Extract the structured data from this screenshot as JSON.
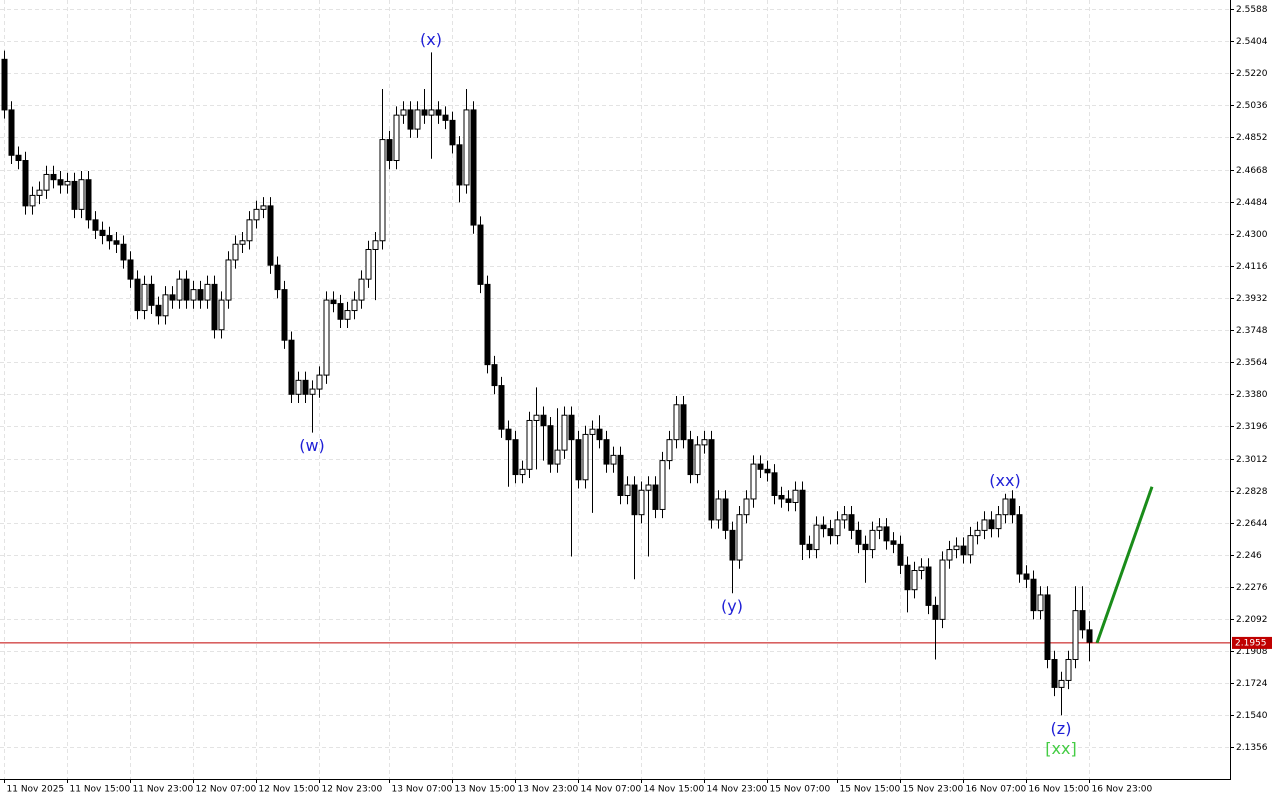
{
  "chart_data": {
    "type": "candlestick",
    "categories": [
      "11 Nov 2025",
      null,
      null,
      null,
      null,
      null,
      null,
      null,
      null,
      "11 Nov 15:00",
      null,
      null,
      null,
      null,
      null,
      null,
      null,
      null,
      "11 Nov 23:00",
      null,
      null,
      null,
      null,
      null,
      null,
      null,
      null,
      "12 Nov 07:00",
      null,
      null,
      null,
      null,
      null,
      null,
      null,
      null,
      "12 Nov 15:00",
      null,
      null,
      null,
      null,
      null,
      null,
      null,
      null,
      "12 Nov 23:00",
      null,
      null,
      null,
      null,
      null,
      null,
      null,
      null,
      null,
      "13 Nov 07:00",
      null,
      null,
      null,
      null,
      null,
      null,
      null,
      null,
      "13 Nov 15:00",
      null,
      null,
      null,
      null,
      null,
      null,
      null,
      null,
      "13 Nov 23:00",
      null,
      null,
      null,
      null,
      null,
      null,
      null,
      null,
      "14 Nov 07:00",
      null,
      null,
      null,
      null,
      null,
      null,
      null,
      null,
      "14 Nov 15:00",
      null,
      null,
      null,
      null,
      null,
      null,
      null,
      null,
      "14 Nov 23:00",
      null,
      null,
      null,
      null,
      null,
      null,
      null,
      null,
      "15 Nov 07:00",
      null,
      null,
      null,
      null,
      null,
      null,
      null,
      null,
      null,
      "15 Nov 15:00",
      null,
      null,
      null,
      null,
      null,
      null,
      null,
      null,
      "15 Nov 23:00",
      null,
      null,
      null,
      null,
      null,
      null,
      null,
      null,
      "16 Nov 07:00",
      null,
      null,
      null,
      null,
      null,
      null,
      null,
      null,
      "16 Nov 15:00",
      null,
      null,
      null,
      null,
      null,
      null,
      null,
      null,
      "16 Nov 23:00"
    ],
    "open": [
      2.53,
      2.501,
      2.475,
      2.472,
      2.446,
      2.452,
      2.455,
      2.464,
      2.461,
      2.458,
      2.46,
      2.444,
      2.461,
      2.438,
      2.432,
      2.429,
      2.426,
      2.424,
      2.415,
      2.404,
      2.386,
      2.401,
      2.389,
      2.383,
      2.395,
      2.392,
      2.404,
      2.392,
      2.398,
      2.392,
      2.401,
      2.375,
      2.392,
      2.415,
      2.424,
      2.426,
      2.438,
      2.444,
      2.446,
      2.412,
      2.398,
      2.369,
      2.338,
      2.346,
      2.338,
      2.341,
      2.349,
      2.392,
      2.39,
      2.381,
      2.386,
      2.392,
      2.404,
      2.421,
      2.426,
      2.484,
      2.472,
      2.498,
      2.501,
      2.49,
      2.501,
      2.498,
      2.501,
      2.498,
      2.495,
      2.481,
      2.458,
      2.501,
      2.435,
      2.401,
      2.355,
      2.343,
      2.318,
      2.312,
      2.292,
      2.295,
      2.323,
      2.326,
      2.32,
      2.298,
      2.306,
      2.326,
      2.312,
      2.289,
      2.315,
      2.318,
      2.312,
      2.298,
      2.303,
      2.28,
      2.286,
      2.269,
      2.283,
      2.286,
      2.272,
      2.3,
      2.312,
      2.332,
      2.312,
      2.292,
      2.309,
      2.312,
      2.266,
      2.278,
      2.26,
      2.243,
      2.269,
      2.278,
      2.298,
      2.295,
      2.293,
      2.28,
      2.278,
      2.276,
      2.283,
      2.252,
      2.249,
      2.263,
      2.261,
      2.257,
      2.266,
      2.269,
      2.26,
      2.252,
      2.249,
      2.26,
      2.262,
      2.254,
      2.252,
      2.24,
      2.226,
      2.237,
      2.239,
      2.217,
      2.209,
      2.243,
      2.249,
      2.251,
      2.246,
      2.257,
      2.26,
      2.266,
      2.261,
      2.269,
      2.278,
      2.269,
      2.235,
      2.232,
      2.214,
      2.223,
      2.186,
      2.17,
      2.174,
      2.186,
      2.214,
      2.203
    ],
    "high": [
      2.535,
      2.506,
      2.48,
      2.477,
      2.457,
      2.46,
      2.469,
      2.469,
      2.466,
      2.465,
      2.465,
      2.466,
      2.466,
      2.443,
      2.437,
      2.434,
      2.431,
      2.429,
      2.42,
      2.409,
      2.406,
      2.406,
      2.394,
      2.4,
      2.4,
      2.409,
      2.409,
      2.403,
      2.403,
      2.406,
      2.406,
      2.397,
      2.42,
      2.429,
      2.431,
      2.443,
      2.449,
      2.451,
      2.451,
      2.417,
      2.403,
      2.374,
      2.351,
      2.351,
      2.346,
      2.354,
      2.397,
      2.397,
      2.395,
      2.391,
      2.397,
      2.409,
      2.426,
      2.431,
      2.513,
      2.489,
      2.503,
      2.506,
      2.506,
      2.506,
      2.513,
      2.534,
      2.506,
      2.503,
      2.5,
      2.486,
      2.513,
      2.506,
      2.44,
      2.406,
      2.36,
      2.348,
      2.323,
      2.317,
      2.3,
      2.328,
      2.342,
      2.331,
      2.325,
      2.33,
      2.331,
      2.331,
      2.317,
      2.32,
      2.323,
      2.326,
      2.317,
      2.308,
      2.308,
      2.291,
      2.291,
      2.288,
      2.291,
      2.291,
      2.305,
      2.317,
      2.337,
      2.337,
      2.317,
      2.314,
      2.317,
      2.317,
      2.283,
      2.283,
      2.265,
      2.274,
      2.283,
      2.303,
      2.303,
      2.3,
      2.298,
      2.285,
      2.283,
      2.288,
      2.288,
      2.257,
      2.268,
      2.268,
      2.266,
      2.271,
      2.274,
      2.274,
      2.265,
      2.257,
      2.265,
      2.267,
      2.267,
      2.259,
      2.257,
      2.245,
      2.242,
      2.244,
      2.244,
      2.222,
      2.248,
      2.254,
      2.256,
      2.256,
      2.262,
      2.265,
      2.271,
      2.271,
      2.274,
      2.281,
      2.283,
      2.274,
      2.24,
      2.237,
      2.228,
      2.228,
      2.191,
      2.179,
      2.191,
      2.228,
      2.228,
      2.208
    ],
    "low": [
      2.496,
      2.47,
      2.467,
      2.441,
      2.441,
      2.447,
      2.45,
      2.456,
      2.453,
      2.453,
      2.439,
      2.439,
      2.433,
      2.427,
      2.424,
      2.421,
      2.419,
      2.41,
      2.399,
      2.381,
      2.381,
      2.384,
      2.378,
      2.378,
      2.387,
      2.387,
      2.387,
      2.387,
      2.387,
      2.387,
      2.37,
      2.37,
      2.387,
      2.41,
      2.419,
      2.421,
      2.433,
      2.439,
      2.407,
      2.393,
      2.364,
      2.333,
      2.333,
      2.333,
      2.316,
      2.336,
      2.344,
      2.385,
      2.376,
      2.376,
      2.381,
      2.387,
      2.399,
      2.392,
      2.421,
      2.467,
      2.467,
      2.493,
      2.485,
      2.485,
      2.493,
      2.473,
      2.493,
      2.49,
      2.476,
      2.448,
      2.453,
      2.43,
      2.396,
      2.35,
      2.338,
      2.313,
      2.285,
      2.287,
      2.287,
      2.29,
      2.295,
      2.3,
      2.293,
      2.293,
      2.301,
      2.245,
      2.284,
      2.284,
      2.27,
      2.307,
      2.293,
      2.293,
      2.275,
      2.275,
      2.232,
      2.264,
      2.245,
      2.267,
      2.267,
      2.295,
      2.307,
      2.307,
      2.287,
      2.287,
      2.304,
      2.261,
      2.261,
      2.255,
      2.224,
      2.238,
      2.264,
      2.273,
      2.29,
      2.288,
      2.275,
      2.273,
      2.271,
      2.271,
      2.243,
      2.244,
      2.244,
      2.256,
      2.252,
      2.252,
      2.261,
      2.255,
      2.247,
      2.23,
      2.244,
      2.255,
      2.249,
      2.247,
      2.235,
      2.213,
      2.221,
      2.232,
      2.212,
      2.186,
      2.204,
      2.238,
      2.244,
      2.241,
      2.241,
      2.252,
      2.255,
      2.256,
      2.256,
      2.264,
      2.264,
      2.23,
      2.227,
      2.209,
      2.209,
      2.181,
      2.165,
      2.154,
      2.169,
      2.181,
      2.198,
      2.185
    ],
    "close": [
      2.501,
      2.475,
      2.472,
      2.446,
      2.452,
      2.455,
      2.464,
      2.461,
      2.458,
      2.46,
      2.444,
      2.461,
      2.438,
      2.432,
      2.429,
      2.426,
      2.424,
      2.415,
      2.404,
      2.386,
      2.401,
      2.389,
      2.383,
      2.395,
      2.392,
      2.404,
      2.392,
      2.398,
      2.392,
      2.401,
      2.375,
      2.392,
      2.415,
      2.424,
      2.426,
      2.438,
      2.444,
      2.446,
      2.412,
      2.398,
      2.369,
      2.338,
      2.346,
      2.338,
      2.341,
      2.349,
      2.392,
      2.39,
      2.381,
      2.386,
      2.392,
      2.404,
      2.421,
      2.426,
      2.484,
      2.472,
      2.498,
      2.501,
      2.49,
      2.501,
      2.498,
      2.501,
      2.498,
      2.495,
      2.481,
      2.458,
      2.501,
      2.435,
      2.401,
      2.355,
      2.343,
      2.318,
      2.312,
      2.292,
      2.295,
      2.323,
      2.326,
      2.32,
      2.298,
      2.306,
      2.326,
      2.312,
      2.289,
      2.315,
      2.318,
      2.312,
      2.298,
      2.303,
      2.28,
      2.286,
      2.269,
      2.283,
      2.286,
      2.272,
      2.3,
      2.312,
      2.332,
      2.312,
      2.292,
      2.309,
      2.312,
      2.266,
      2.278,
      2.26,
      2.243,
      2.269,
      2.278,
      2.298,
      2.295,
      2.293,
      2.28,
      2.278,
      2.276,
      2.283,
      2.252,
      2.249,
      2.263,
      2.261,
      2.257,
      2.266,
      2.269,
      2.26,
      2.252,
      2.249,
      2.26,
      2.262,
      2.254,
      2.252,
      2.24,
      2.226,
      2.237,
      2.239,
      2.217,
      2.209,
      2.243,
      2.249,
      2.251,
      2.246,
      2.257,
      2.26,
      2.266,
      2.261,
      2.269,
      2.278,
      2.269,
      2.235,
      2.232,
      2.214,
      2.223,
      2.186,
      2.17,
      2.174,
      2.186,
      2.214,
      2.203,
      2.196
    ],
    "up_color": "#ffffff",
    "down_color": "#000000",
    "ylim": [
      2.1175,
      2.564
    ],
    "yticks": [
      2.5588,
      2.5404,
      {
        "value": 2.522,
        "label": "2.5220"
      },
      2.5036,
      2.4852,
      2.4668,
      2.4484,
      {
        "value": 2.43,
        "label": "2.4300"
      },
      2.4116,
      2.3932,
      2.3748,
      2.3564,
      {
        "value": 2.338,
        "label": "2.3380"
      },
      2.3196,
      2.3012,
      2.2828,
      2.2644,
      2.246,
      2.2276,
      2.2092,
      2.1908,
      2.1724,
      {
        "value": 2.154,
        "label": "2.1540"
      },
      2.1356
    ],
    "grid": true,
    "last_price": 2.1955,
    "last_price_color": "#c00000",
    "projection": {
      "color": "#1a8c1a",
      "values": [
        2.1955,
        2.285
      ]
    },
    "annotations": [
      {
        "text": "(x)",
        "at": 61,
        "position": "above",
        "color": "#1f1fd6"
      },
      {
        "text": "(w)",
        "at": 44,
        "position": "below",
        "color": "#1f1fd6"
      },
      {
        "text": "(y)",
        "at": 104,
        "position": "below",
        "color": "#1f1fd6"
      },
      {
        "text": "(xx)",
        "at": 143,
        "position": "above",
        "color": "#1f1fd6"
      },
      {
        "text": "(z)",
        "at": 151,
        "position": "below",
        "color": "#1f1fd6"
      },
      {
        "text": "[xx]",
        "at": 151,
        "position": "below",
        "color": "#44cc44"
      }
    ]
  }
}
